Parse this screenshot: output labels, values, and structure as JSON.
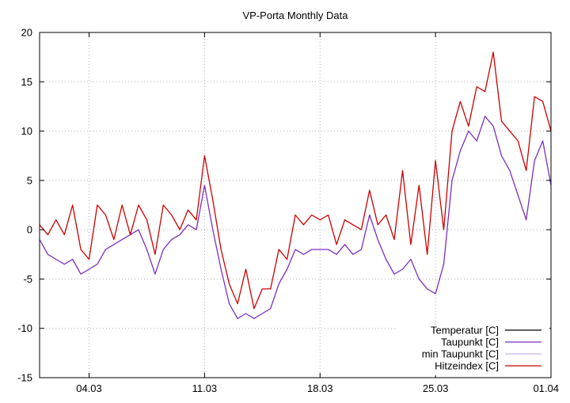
{
  "chart_data": {
    "type": "line",
    "title": "VP-Porta Monthly Data",
    "xlabel": "",
    "ylabel": "",
    "xlim": [
      0,
      31
    ],
    "ylim": [
      -15,
      20
    ],
    "grid": true,
    "legend_position": "bottom-right",
    "yticks": [
      -15,
      -10,
      -5,
      0,
      5,
      10,
      15,
      20
    ],
    "xticks": [
      {
        "x": 3,
        "label": "04.03"
      },
      {
        "x": 10,
        "label": "11.03"
      },
      {
        "x": 17,
        "label": "18.03"
      },
      {
        "x": 24,
        "label": "25.03"
      },
      {
        "x": 31,
        "label": "01.04"
      }
    ],
    "series": [
      {
        "name": "Temperatur [C]",
        "color": "#000000",
        "visible_in_plot": false,
        "x": [],
        "y": []
      },
      {
        "name": "Taupunkt [C]",
        "color": "#7b2fbf",
        "visible_in_plot": true,
        "x": [
          0.0,
          0.5,
          1.0,
          1.5,
          2.0,
          2.5,
          3.0,
          3.5,
          4.0,
          4.5,
          5.0,
          5.5,
          6.0,
          6.5,
          7.0,
          7.5,
          8.0,
          8.5,
          9.0,
          9.5,
          10.0,
          10.5,
          11.0,
          11.5,
          12.0,
          12.5,
          13.0,
          13.5,
          14.0,
          14.5,
          15.0,
          15.5,
          16.0,
          16.5,
          17.0,
          17.5,
          18.0,
          18.5,
          19.0,
          19.5,
          20.0,
          20.5,
          21.0,
          21.5,
          22.0,
          22.5,
          23.0,
          23.5,
          24.0,
          24.5,
          25.0,
          25.5,
          26.0,
          26.5,
          27.0,
          27.5,
          28.0,
          28.5,
          29.0,
          29.5,
          30.0,
          30.5,
          31.0
        ],
        "y": [
          -1.0,
          -2.5,
          -3.0,
          -3.5,
          -3.0,
          -4.5,
          -4.0,
          -3.5,
          -2.0,
          -1.5,
          -1.0,
          -0.5,
          0.0,
          -2.0,
          -4.5,
          -2.0,
          -1.0,
          -0.5,
          0.5,
          0.0,
          4.5,
          0.0,
          -4.0,
          -7.5,
          -9.0,
          -8.5,
          -9.0,
          -8.5,
          -8.0,
          -5.5,
          -4.0,
          -2.0,
          -2.5,
          -2.0,
          -2.0,
          -2.0,
          -2.5,
          -1.5,
          -2.5,
          -2.0,
          1.5,
          -1.0,
          -3.0,
          -4.5,
          -4.0,
          -3.0,
          -5.0,
          -6.0,
          -6.5,
          -3.5,
          5.0,
          8.0,
          10.0,
          9.0,
          11.5,
          10.5,
          7.5,
          6.0,
          3.5,
          1.0,
          7.0,
          9.0,
          4.5
        ]
      },
      {
        "name": "min Taupunkt [C]",
        "color": "#c8b8e6",
        "visible_in_plot": false,
        "x": [],
        "y": []
      },
      {
        "name": "Hitzeindex [C]",
        "color": "#cc0000",
        "visible_in_plot": true,
        "x": [
          0.0,
          0.5,
          1.0,
          1.5,
          2.0,
          2.5,
          3.0,
          3.5,
          4.0,
          4.5,
          5.0,
          5.5,
          6.0,
          6.5,
          7.0,
          7.5,
          8.0,
          8.5,
          9.0,
          9.5,
          10.0,
          10.5,
          11.0,
          11.5,
          12.0,
          12.5,
          13.0,
          13.5,
          14.0,
          14.5,
          15.0,
          15.5,
          16.0,
          16.5,
          17.0,
          17.5,
          18.0,
          18.5,
          19.0,
          19.5,
          20.0,
          20.5,
          21.0,
          21.5,
          22.0,
          22.5,
          23.0,
          23.5,
          24.0,
          24.5,
          25.0,
          25.5,
          26.0,
          26.5,
          27.0,
          27.5,
          28.0,
          28.5,
          29.0,
          29.5,
          30.0,
          30.5,
          31.0
        ],
        "y": [
          0.5,
          -0.5,
          1.0,
          -0.5,
          2.5,
          -2.0,
          -3.0,
          2.5,
          1.5,
          -1.0,
          2.5,
          -0.5,
          2.5,
          1.0,
          -2.5,
          2.5,
          1.5,
          0.0,
          2.0,
          1.0,
          7.5,
          3.0,
          -2.0,
          -5.5,
          -7.5,
          -4.0,
          -8.0,
          -6.0,
          -6.0,
          -2.0,
          -3.0,
          1.5,
          0.5,
          1.5,
          1.0,
          1.5,
          -1.5,
          1.0,
          0.5,
          0.0,
          4.0,
          0.5,
          1.5,
          -1.0,
          6.0,
          -1.5,
          4.5,
          -2.5,
          7.0,
          0.0,
          10.0,
          13.0,
          10.5,
          14.5,
          14.0,
          18.0,
          11.0,
          10.0,
          9.0,
          6.0,
          13.5,
          13.0,
          10.0
        ]
      }
    ]
  }
}
